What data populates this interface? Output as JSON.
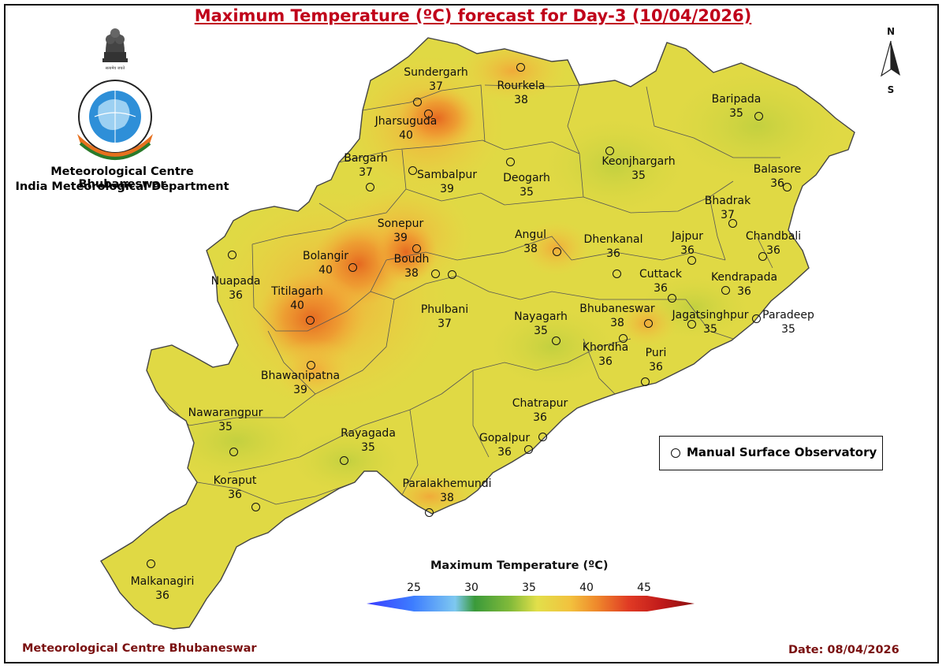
{
  "title": "Maximum Temperature (ºC) forecast for Day-3 (10/04/2026)",
  "org_line1": "Meteorological Centre Bhubaneswar",
  "org_line2": "India Meteorological Department",
  "logo_text": "भारत मौसम विज्ञान विभाग · INDIA METEOROLOGICAL DEPARTMENT · सत्यमेव जयते",
  "north_label": "N",
  "south_label": "S",
  "legend_label": "Manual Surface Observatory",
  "scale_title": "Maximum Temperature (ºC)",
  "scale_ticks": [
    "25",
    "30",
    "35",
    "40",
    "45"
  ],
  "footer_left": "Meteorological Centre Bhubaneswar",
  "footer_right": "Date: 08/04/2026",
  "colors": {
    "title": "#c0001a",
    "footer": "#7a1010",
    "temp_35": "#cfd23e",
    "temp_36": "#e2dc45",
    "temp_37": "#f0cf43",
    "temp_38": "#f3b43a",
    "temp_39": "#f0912e",
    "temp_40": "#e56a24"
  },
  "stations": [
    {
      "name": "Sundergarh",
      "temp": "37"
    },
    {
      "name": "Rourkela",
      "temp": "38"
    },
    {
      "name": "Jharsuguda",
      "temp": "40"
    },
    {
      "name": "Bargarh",
      "temp": "37"
    },
    {
      "name": "Sambalpur",
      "temp": "39"
    },
    {
      "name": "Deogarh",
      "temp": "35"
    },
    {
      "name": "Keonjhargarh",
      "temp": "35"
    },
    {
      "name": "Baripada",
      "temp": "35"
    },
    {
      "name": "Balasore",
      "temp": "36"
    },
    {
      "name": "Bhadrak",
      "temp": "37"
    },
    {
      "name": "Chandbali",
      "temp": "36"
    },
    {
      "name": "Sonepur",
      "temp": "39"
    },
    {
      "name": "Angul",
      "temp": "38"
    },
    {
      "name": "Dhenkanal",
      "temp": "36"
    },
    {
      "name": "Jajpur",
      "temp": "36"
    },
    {
      "name": "Bolangir",
      "temp": "40"
    },
    {
      "name": "Boudh",
      "temp": "38"
    },
    {
      "name": "Nuapada",
      "temp": "36"
    },
    {
      "name": "Cuttack",
      "temp": "36"
    },
    {
      "name": "Kendrapada",
      "temp": "36"
    },
    {
      "name": "Titilagarh",
      "temp": "40"
    },
    {
      "name": "Phulbani",
      "temp": "37"
    },
    {
      "name": "Nayagarh",
      "temp": "35"
    },
    {
      "name": "Bhubaneswar",
      "temp": "38"
    },
    {
      "name": "Jagatsinghpur",
      "temp": "35"
    },
    {
      "name": "Paradeep",
      "temp": "35"
    },
    {
      "name": "Khordha",
      "temp": "36"
    },
    {
      "name": "Puri",
      "temp": "36"
    },
    {
      "name": "Bhawanipatna",
      "temp": "39"
    },
    {
      "name": "Chatrapur",
      "temp": "36"
    },
    {
      "name": "Nawarangpur",
      "temp": "35"
    },
    {
      "name": "Rayagada",
      "temp": "35"
    },
    {
      "name": "Gopalpur",
      "temp": "36"
    },
    {
      "name": "Koraput",
      "temp": "36"
    },
    {
      "name": "Paralakhemundi",
      "temp": "38"
    },
    {
      "name": "Malkanagiri",
      "temp": "36"
    }
  ]
}
